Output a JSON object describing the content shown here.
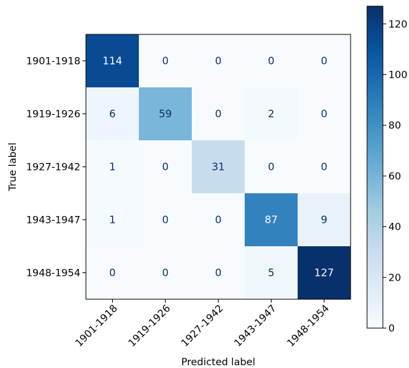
{
  "chart_data": {
    "type": "heatmap",
    "title": "",
    "xlabel": "Predicted label",
    "ylabel": "True label",
    "x_categories": [
      "1901-1918",
      "1919-1926",
      "1927-1942",
      "1943-1947",
      "1948-1954"
    ],
    "y_categories": [
      "1901-1918",
      "1919-1926",
      "1927-1942",
      "1943-1947",
      "1948-1954"
    ],
    "matrix": [
      [
        114,
        0,
        0,
        0,
        0
      ],
      [
        6,
        59,
        0,
        2,
        0
      ],
      [
        1,
        0,
        31,
        0,
        0
      ],
      [
        1,
        0,
        0,
        87,
        9
      ],
      [
        0,
        0,
        0,
        5,
        127
      ]
    ],
    "colormap": "Blues",
    "vmin": 0,
    "vmax": 127,
    "colorbar_ticks": [
      0,
      20,
      40,
      60,
      80,
      100,
      120
    ],
    "grid": false
  }
}
